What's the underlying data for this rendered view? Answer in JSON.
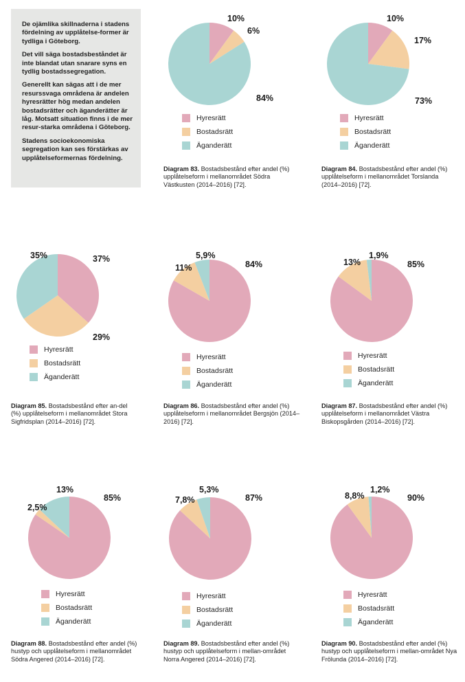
{
  "colors": {
    "hyresratt": "#e2a9b9",
    "bostadsratt": "#f4cfa1",
    "aganderatt": "#a9d5d3"
  },
  "legend": [
    "Hyresrätt",
    "Bostadsrätt",
    "Äganderätt"
  ],
  "info_box": {
    "paragraphs": [
      "De ojämlika skillnaderna i stadens fördelning av upplåtelse-former är tydliga i Göteborg.",
      "Det vill säga bostadsbeståndet är inte blandat utan snarare syns en tydlig bostadssegregation.",
      "Generellt kan sägas att i de mer resurssvaga områdena är andelen hyresrätter hög medan andelen bostadsrätter och äganderätter är låg. Motsatt situation finns i de mer resur-starka områdena i Göteborg.",
      "Stadens socioekonomiska segregation kan ses förstärkas av upplåtelseformernas fördelning."
    ]
  },
  "chart_data": [
    {
      "type": "pie",
      "title": "Diagram 83.",
      "caption": "Bostadsbestånd efter andel (%) upplåtelseform i mellanområdet Södra Västkusten (2014–2016) [72].",
      "categories": [
        "Hyresrätt",
        "Bostadsrätt",
        "Äganderätt"
      ],
      "values": [
        10,
        6,
        84
      ],
      "labels": [
        "10%",
        "6%",
        "84%"
      ],
      "legend_position": "bottom"
    },
    {
      "type": "pie",
      "title": "Diagram 84.",
      "caption": "Bostadsbestånd efter andel (%) upplåtelseform i mellanområdet Torslanda (2014–2016) [72].",
      "categories": [
        "Hyresrätt",
        "Bostadsrätt",
        "Äganderätt"
      ],
      "values": [
        10,
        17,
        73
      ],
      "labels": [
        "10%",
        "17%",
        "73%"
      ],
      "legend_position": "bottom"
    },
    {
      "type": "pie",
      "title": "Diagram 85.",
      "caption": "Bostadsbestånd efter an-del (%) upplåtelseform i mellanområdet Stora Sigfridsplan (2014–2016) [72].",
      "categories": [
        "Hyresrätt",
        "Bostadsrätt",
        "Äganderätt"
      ],
      "values": [
        37,
        29,
        35
      ],
      "labels": [
        "37%",
        "29%",
        "35%"
      ],
      "legend_position": "bottom"
    },
    {
      "type": "pie",
      "title": "Diagram 86.",
      "caption": "Bostadsbestånd efter andel (%) upplåtelseform i mellanområdet Bergsjön (2014–2016) [72].",
      "categories": [
        "Hyresrätt",
        "Bostadsrätt",
        "Äganderätt"
      ],
      "values": [
        84,
        11,
        5.9
      ],
      "labels": [
        "84%",
        "11%",
        "5,9%"
      ],
      "legend_position": "bottom"
    },
    {
      "type": "pie",
      "title": "Diagram 87.",
      "caption": "Bostadsbestånd efter andel (%) upplåtelseform i mellanområdet Västra Biskopsgården (2014–2016) [72].",
      "categories": [
        "Hyresrätt",
        "Bostadsrätt",
        "Äganderätt"
      ],
      "values": [
        85,
        13,
        1.9
      ],
      "labels": [
        "85%",
        "13%",
        "1,9%"
      ],
      "legend_position": "bottom"
    },
    {
      "type": "pie",
      "title": "Diagram 88.",
      "caption": "Bostadsbestånd efter andel (%) hustyp och upplåtelseform i mellanområdet Södra Angered (2014–2016) [72].",
      "categories": [
        "Hyresrätt",
        "Bostadsrätt",
        "Äganderätt"
      ],
      "values": [
        85,
        2.5,
        13
      ],
      "labels": [
        "85%",
        "2,5%",
        "13%"
      ],
      "legend_position": "bottom"
    },
    {
      "type": "pie",
      "title": "Diagram 89.",
      "caption": "Bostadsbestånd efter andel (%) hustyp och upplåtelseform i mellan-området Norra Angered (2014–2016) [72].",
      "categories": [
        "Hyresrätt",
        "Bostadsrätt",
        "Äganderätt"
      ],
      "values": [
        87,
        7.8,
        5.3
      ],
      "labels": [
        "87%",
        "7,8%",
        "5,3%"
      ],
      "legend_position": "bottom"
    },
    {
      "type": "pie",
      "title": "Diagram 90.",
      "caption": "Bostadsbestånd efter andel (%) hustyp och upplåtelseform i mellan-området Nya Frölunda (2014–2016) [72].",
      "categories": [
        "Hyresrätt",
        "Bostadsrätt",
        "Äganderätt"
      ],
      "values": [
        90,
        8.8,
        1.2
      ],
      "labels": [
        "90%",
        "8,8%",
        "1,2%"
      ],
      "legend_position": "bottom"
    }
  ]
}
